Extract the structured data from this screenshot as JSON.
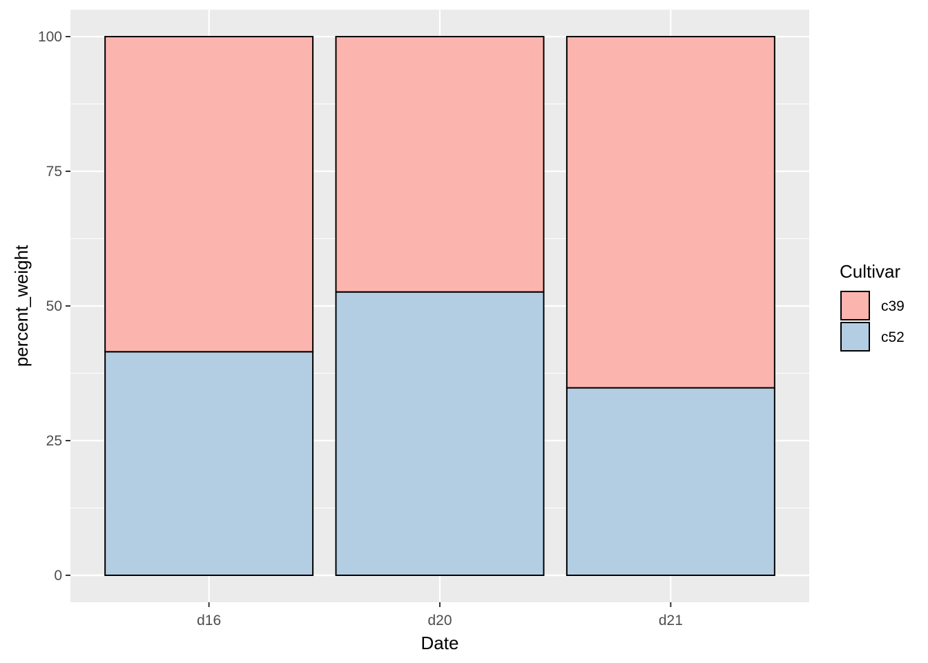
{
  "chart_data": {
    "type": "bar",
    "stacked": true,
    "categories": [
      "d16",
      "d20",
      "d21"
    ],
    "series": [
      {
        "name": "c52",
        "values": [
          41.5,
          52.6,
          34.8
        ],
        "color": "#B3CDE3"
      },
      {
        "name": "c39",
        "values": [
          58.5,
          47.4,
          65.2
        ],
        "color": "#FBB4AE"
      }
    ],
    "xlabel": "Date",
    "ylabel": "percent_weight",
    "ylim": [
      -5,
      105
    ],
    "yticks": [
      0,
      25,
      50,
      75,
      100
    ],
    "grid": true,
    "legend": {
      "title": "Cultivar",
      "position": "right",
      "entries": [
        {
          "label": "c39",
          "color": "#FBB4AE"
        },
        {
          "label": "c52",
          "color": "#B3CDE3"
        }
      ]
    },
    "panel_background": "#EBEBEB",
    "bar_outline": "#000000"
  }
}
